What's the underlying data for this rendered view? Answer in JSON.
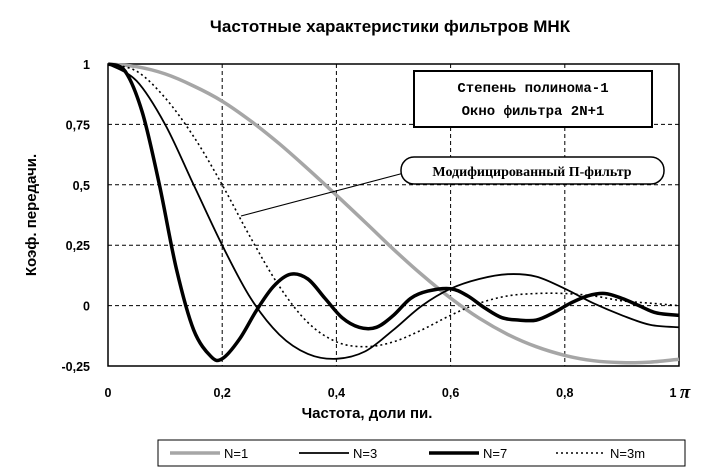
{
  "chart_data": {
    "type": "line",
    "title": "Частотные характеристики фильтров МНК",
    "xlabel": "Частота, доли пи.",
    "ylabel": "Коэф. передачи.",
    "xlim": [
      0,
      1
    ],
    "ylim": [
      -0.25,
      1
    ],
    "x_ticks": [
      "0",
      "0,2",
      "0,4",
      "0,6",
      "0,8",
      "1"
    ],
    "x_last_suffix": "π",
    "y_ticks": [
      "1",
      "0,75",
      "0,5",
      "0,25",
      "0",
      "-0,25"
    ],
    "grid": true,
    "legend_position": "bottom",
    "info_box": [
      "Степень полинома-1",
      "Окно фильтра 2N+1"
    ],
    "annotation": "Модифицированный П-фильтр",
    "series": [
      {
        "name": "N=1",
        "color": "#a6a6a6",
        "style": "thick-gray",
        "x": [
          0,
          0.05,
          0.1,
          0.15,
          0.2,
          0.25,
          0.3,
          0.35,
          0.4,
          0.45,
          0.5,
          0.55,
          0.6,
          0.65,
          0.7,
          0.75,
          0.8,
          0.85,
          0.9,
          0.95,
          1
        ],
        "y": [
          1,
          0.989,
          0.959,
          0.909,
          0.846,
          0.764,
          0.67,
          0.566,
          0.457,
          0.346,
          0.233,
          0.127,
          0.031,
          -0.052,
          -0.119,
          -0.17,
          -0.206,
          -0.228,
          -0.236,
          -0.234,
          -0.222
        ]
      },
      {
        "name": "N=3",
        "color": "#000000",
        "style": "solid",
        "x": [
          0,
          0.05,
          0.1,
          0.15,
          0.2,
          0.25,
          0.3,
          0.35,
          0.4,
          0.45,
          0.5,
          0.55,
          0.6,
          0.65,
          0.7,
          0.75,
          0.8,
          0.85,
          0.9,
          0.95,
          1
        ],
        "y": [
          1,
          0.93,
          0.75,
          0.5,
          0.25,
          0.03,
          -0.12,
          -0.2,
          -0.22,
          -0.19,
          -0.1,
          0.0,
          0.07,
          0.11,
          0.13,
          0.12,
          0.07,
          0.01,
          -0.04,
          -0.08,
          -0.09
        ]
      },
      {
        "name": "N=7",
        "color": "#000000",
        "style": "thick",
        "x": [
          0,
          0.03,
          0.06,
          0.09,
          0.12,
          0.15,
          0.18,
          0.2,
          0.23,
          0.26,
          0.29,
          0.32,
          0.35,
          0.38,
          0.41,
          0.44,
          0.47,
          0.5,
          0.53,
          0.56,
          0.6,
          0.63,
          0.66,
          0.69,
          0.72,
          0.75,
          0.78,
          0.81,
          0.84,
          0.87,
          0.9,
          0.93,
          0.96,
          1
        ],
        "y": [
          1,
          0.97,
          0.8,
          0.5,
          0.15,
          -0.1,
          -0.21,
          -0.22,
          -0.14,
          -0.02,
          0.08,
          0.13,
          0.11,
          0.03,
          -0.05,
          -0.09,
          -0.09,
          -0.04,
          0.03,
          0.06,
          0.07,
          0.04,
          -0.01,
          -0.05,
          -0.06,
          -0.06,
          -0.03,
          0.01,
          0.04,
          0.05,
          0.03,
          0.0,
          -0.03,
          -0.04
        ]
      },
      {
        "name": "N=3m",
        "color": "#000000",
        "style": "dotted",
        "x": [
          0,
          0.05,
          0.1,
          0.15,
          0.2,
          0.25,
          0.3,
          0.35,
          0.4,
          0.45,
          0.5,
          0.55,
          0.6,
          0.65,
          0.7,
          0.75,
          0.8,
          0.85,
          0.9,
          0.95,
          1
        ],
        "y": [
          1,
          0.97,
          0.86,
          0.7,
          0.5,
          0.28,
          0.08,
          -0.07,
          -0.15,
          -0.17,
          -0.15,
          -0.1,
          -0.04,
          0.01,
          0.04,
          0.05,
          0.05,
          0.04,
          0.02,
          0.01,
          0.0
        ]
      }
    ]
  }
}
